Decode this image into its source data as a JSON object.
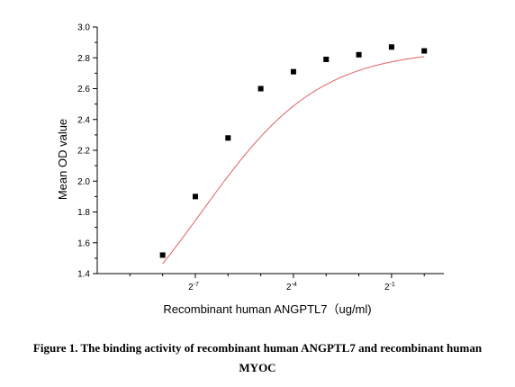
{
  "chart_data": {
    "type": "scatter",
    "xlabel": "Recombinant human ANGPTL7（ug/ml)",
    "ylabel": "Mean OD value",
    "x_scale": "log2",
    "x_ticks": [
      {
        "base": "2",
        "exp": "-7"
      },
      {
        "base": "2",
        "exp": "-4"
      },
      {
        "base": "2",
        "exp": "-1"
      }
    ],
    "x_tick_exponents": [
      -7,
      -4,
      -1
    ],
    "xlim_log2": [
      -10,
      0.6
    ],
    "yticks": [
      "1.4",
      "1.6",
      "1.8",
      "2.0",
      "2.2",
      "2.4",
      "2.6",
      "2.8",
      "3.0"
    ],
    "ylim": [
      1.4,
      3.0
    ],
    "grid": false,
    "legend": "none",
    "series": [
      {
        "x_log2": [
          -8,
          -7,
          -6,
          -5,
          -4,
          -3,
          -2,
          -1,
          0
        ],
        "values": [
          1.52,
          1.9,
          2.28,
          2.6,
          2.71,
          2.79,
          2.82,
          2.87,
          2.845
        ],
        "marker": "square",
        "color": "#000000"
      }
    ],
    "fit": {
      "type": "sigmoid",
      "color": "#e06060",
      "x_log2_range": [
        -8,
        0
      ],
      "bottom": 0.75,
      "top": 2.855,
      "ec50_log2": -6.8,
      "hill_slope": 0.8
    }
  },
  "caption": "Figure 1. The binding activity of recombinant human ANGPTL7 and recombinant human MYOC"
}
